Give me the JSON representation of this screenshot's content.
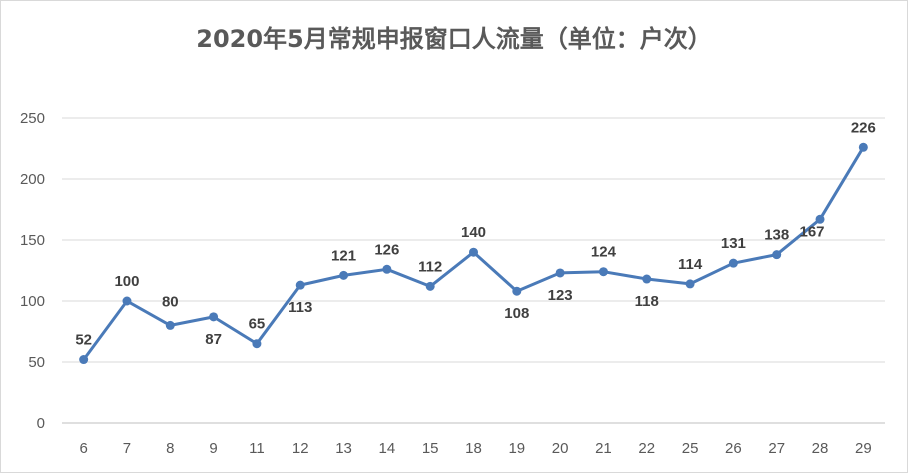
{
  "chart_data": {
    "type": "line",
    "title": "2020年5月常规申报窗口人流量（单位：户次）",
    "categories": [
      "6",
      "7",
      "8",
      "9",
      "11",
      "12",
      "13",
      "14",
      "15",
      "18",
      "19",
      "20",
      "21",
      "22",
      "25",
      "26",
      "27",
      "28",
      "29"
    ],
    "series": [
      {
        "values": [
          52,
          100,
          80,
          87,
          65,
          113,
          121,
          126,
          112,
          140,
          108,
          123,
          124,
          118,
          114,
          131,
          138,
          167,
          226
        ]
      }
    ],
    "ylim": [
      0,
      250
    ],
    "yticks": [
      0,
      50,
      100,
      150,
      200,
      250
    ],
    "grid": true,
    "legend": "none",
    "colors": {
      "line": "#4a7ab8",
      "marker": "#4a7ab8",
      "grid": "#d9d9d9",
      "text": "#595959"
    }
  }
}
